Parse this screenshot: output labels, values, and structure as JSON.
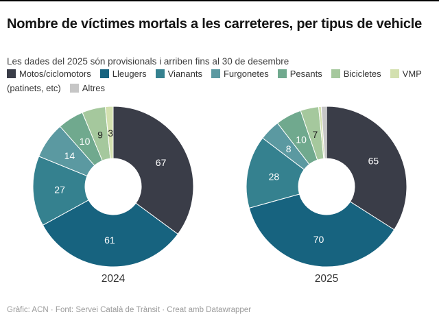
{
  "page": {
    "title": "Nombre de víctimes mortals a les carreteres, per tipus de vehicle",
    "subtitle": "Les dades del 2025 són provisionals i arriben fins al 30 de desembre",
    "footer": "Gràfic: ACN · Font: Servei Català de Trànsit · Creat amb Datawrapper"
  },
  "chart_data": {
    "type": "pie",
    "variant": "donut",
    "title": "Nombre de víctimes mortals a les carreteres, per tipus de vehicle",
    "subtitle": "Les dades del 2025 són provisionals i arriben fins al 30 de desembre",
    "legend_position": "top",
    "categories": [
      "Motos/ciclomotors",
      "Lleugers",
      "Vianants",
      "Furgonetes",
      "Pesants",
      "Bicicletes",
      "VMP (patinets, etc)",
      "Altres"
    ],
    "colors": [
      "#3a3d48",
      "#17637f",
      "#35818f",
      "#5b99a1",
      "#70a98e",
      "#a5c89d",
      "#d3e0af",
      "#c6c6c6"
    ],
    "series": [
      {
        "name": "2024",
        "values": [
          67,
          61,
          27,
          14,
          10,
          9,
          3,
          0
        ]
      },
      {
        "name": "2025",
        "values": [
          65,
          70,
          28,
          8,
          10,
          7,
          1,
          2
        ]
      }
    ],
    "label_min_value": 3,
    "label_color_dark": "#222222",
    "label_color_light": "#ffffff"
  }
}
